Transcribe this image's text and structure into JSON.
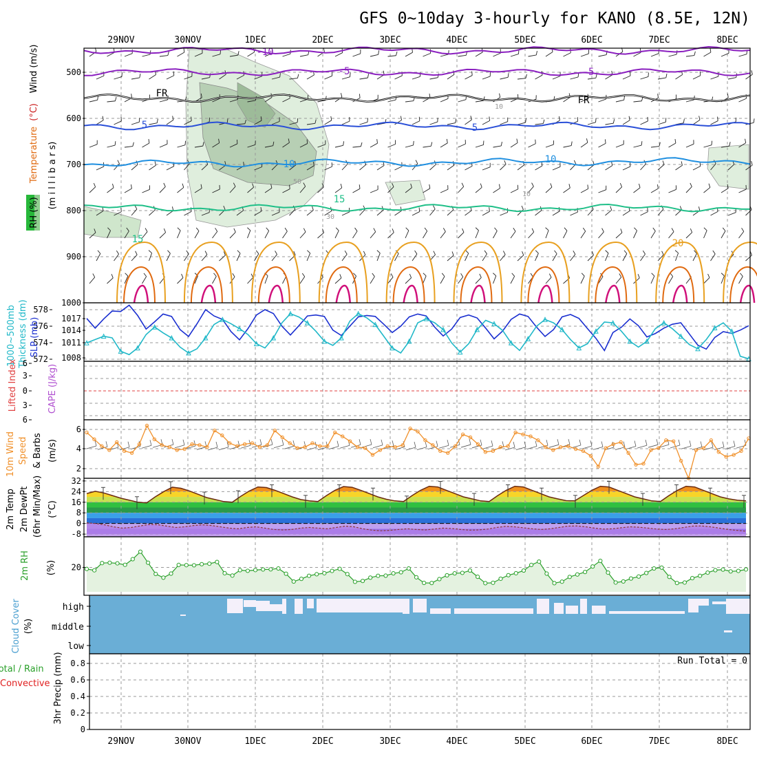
{
  "title": "GFS 0~10day 3-hourly for KANO (8.5E, 12N)",
  "dates": [
    "29NOV",
    "30NOV",
    "1DEC",
    "2DEC",
    "3DEC",
    "4DEC",
    "5DEC",
    "6DEC",
    "7DEC",
    "8DEC"
  ],
  "colors": {
    "purple": "#8a1fbf",
    "black": "#000000",
    "blue": "#2a4fd8",
    "lightblue": "#1f8fe0",
    "teal": "#1fbf88",
    "orange": "#e8a020",
    "darkorange": "#e06a10",
    "magenta": "#d0107a",
    "slp": "#1a2fd0",
    "thick": "#20b8c8",
    "wind10": "#f0902a",
    "dewpt": "#9a40e0",
    "rh": "#2aa02a",
    "cloud": "#6aaed6",
    "cloudwhite": "#f4f0fa",
    "li": "#e04040"
  },
  "panels": {
    "upper": {
      "labels": {
        "rh": "RH (%)",
        "temperature": "Temperature",
        "degc": "(°C)",
        "wind": "Wind (m/s)",
        "axis": "(m i l l i b a r s)"
      },
      "yticks": [
        "500",
        "600",
        "700",
        "800",
        "900",
        "1000"
      ]
    },
    "slp": {
      "labels": {
        "thick1": "1000~500mb",
        "thick2": "Thickness (dm)",
        "slp": "SLP (mb)"
      },
      "left_ticks": [
        "578",
        "576",
        "574",
        "572"
      ],
      "right_ticks": [
        "1017",
        "1014",
        "1011",
        "1008"
      ]
    },
    "cape": {
      "labels": {
        "li": "Lifted Index",
        "cape": "CAPE (J/kg)"
      },
      "yticks": [
        "6",
        "3",
        "0",
        "3",
        "6"
      ]
    },
    "wind10": {
      "labels": {
        "l1": "10m Wind",
        "l2": "Speed",
        "l3": "& Barbs",
        "unit": "(m/s)"
      },
      "yticks": [
        "6",
        "4",
        "2"
      ]
    },
    "temp": {
      "labels": {
        "l1": "2m Temp",
        "l2": "2m DewPt",
        "l3": "(6hr Min/Max)",
        "unit": "(°C)"
      },
      "yticks": [
        "32",
        "24",
        "16",
        "8",
        "0",
        "-8"
      ]
    },
    "rh": {
      "labels": {
        "l1": "2m RH",
        "unit": "(%)"
      },
      "yticks": [
        "20"
      ]
    },
    "cloud": {
      "labels": {
        "l1": "Cloud Cover",
        "unit": "(%)"
      },
      "levels": [
        "high",
        "middle",
        "low"
      ]
    },
    "precip": {
      "labels": {
        "l1": "Total / Rain",
        "l2": "Convective",
        "l3": "3hr Precip (mm)"
      },
      "yticks": [
        "0.8",
        "0.6",
        "0.4",
        "0.2",
        "0"
      ],
      "run_total": "Run Total = 0"
    }
  },
  "chart_data": [
    {
      "type": "line",
      "title": "GFS 0~10day 3-hourly for KANO (8.5E, 12N)",
      "ylabel": "millibars",
      "ylim": [
        450,
        1000
      ],
      "y_reversed": true,
      "contour_labels": [
        "-10",
        "-5",
        "-5",
        "FR",
        "FR",
        "5",
        "5",
        "10",
        "10",
        "15",
        "15",
        "20",
        "10",
        "50",
        "30",
        "10"
      ],
      "series": [
        {
          "name": "-10",
          "level_mb": 455
        },
        {
          "name": "-5",
          "level_mb": 502
        },
        {
          "name": "FR",
          "level_mb": 558
        },
        {
          "name": "5",
          "level_mb": 618
        },
        {
          "name": "10",
          "level_mb": 700
        },
        {
          "name": "15",
          "level_mb": 795
        }
      ]
    },
    {
      "type": "line",
      "ylim_left": [
        572,
        579
      ],
      "ylim_right": [
        1007,
        1019
      ],
      "series": [
        {
          "name": "SLP (mb)",
          "values": [
            1015.8,
            1013.8,
            1015.7,
            1017.3,
            1017.2,
            1018.5,
            1016.4,
            1013.6,
            1015.1,
            1016.7,
            1016.2,
            1013.5,
            1012.1,
            1014.7,
            1017.6,
            1016.3,
            1015.6,
            1013.1,
            1011.4,
            1013.7,
            1016.5,
            1017.6,
            1016.8,
            1014.2,
            1012.4,
            1014.3,
            1016.3,
            1016.5,
            1016.2,
            1013.4,
            1012.3,
            1014.2,
            1016.1,
            1016.4,
            1016.2,
            1014.6,
            1012.9,
            1014.2,
            1016.1,
            1016.7,
            1016.3,
            1014.0,
            1012.2,
            1013.6,
            1016.0,
            1016.5,
            1015.9,
            1013.8,
            1011.6,
            1013.2,
            1015.6,
            1016.7,
            1016.2,
            1014.0,
            1012.1,
            1013.5,
            1016.1,
            1016.6,
            1015.8,
            1013.7,
            1011.7,
            1009.2,
            1012.9,
            1014.0,
            1015.7,
            1014.3,
            1012.0,
            1012.7,
            1013.8,
            1014.6,
            1014.9,
            1012.6,
            1010.3,
            1009.5,
            1011.9,
            1013.1,
            1012.7,
            1013.4,
            1014.3
          ]
        },
        {
          "name": "1000~500mb Thickness (dm)",
          "values": [
            574.2,
            574.6,
            575.0,
            574.8,
            573.2,
            572.8,
            573.6,
            575.2,
            576.1,
            575.4,
            574.8,
            573.7,
            573.0,
            573.5,
            574.8,
            576.4,
            577.0,
            576.5,
            575.9,
            575.2,
            574.1,
            573.6,
            574.8,
            576.6,
            577.7,
            577.3,
            576.6,
            575.6,
            574.4,
            573.9,
            574.8,
            576.8,
            577.7,
            577.2,
            576.4,
            575.0,
            573.6,
            573.0,
            574.4,
            576.6,
            577.1,
            576.6,
            575.8,
            574.2,
            573.1,
            574.1,
            575.8,
            576.9,
            576.5,
            575.7,
            574.2,
            573.3,
            574.7,
            576.2,
            577.0,
            576.6,
            575.8,
            574.6,
            573.6,
            574.1,
            575.6,
            576.7,
            576.6,
            575.6,
            574.4,
            573.7,
            574.4,
            575.9,
            576.6,
            575.9,
            575.0,
            574.0,
            573.5,
            574.6,
            576.0,
            576.6,
            575.6,
            572.6,
            572.3
          ]
        }
      ]
    },
    {
      "type": "line",
      "ylim": [
        -6,
        6
      ],
      "series": [
        {
          "name": "Lifted Index",
          "values": []
        },
        {
          "name": "CAPE (J/kg)",
          "values": []
        }
      ]
    },
    {
      "type": "line",
      "ylabel": "(m/s)",
      "ylim": [
        1,
        7
      ],
      "series": [
        {
          "name": "10m Wind Speed",
          "values": [
            5.7,
            5.0,
            4.3,
            3.9,
            4.7,
            3.8,
            3.6,
            4.5,
            6.4,
            5.0,
            4.4,
            4.2,
            3.9,
            4.0,
            4.5,
            4.4,
            4.2,
            5.9,
            5.4,
            4.6,
            4.3,
            4.5,
            4.6,
            4.2,
            4.4,
            5.9,
            5.2,
            4.6,
            4.1,
            4.2,
            4.6,
            4.3,
            4.3,
            5.7,
            5.3,
            4.8,
            4.2,
            4.1,
            3.4,
            3.9,
            4.3,
            4.2,
            4.4,
            6.1,
            5.8,
            4.9,
            4.4,
            3.8,
            3.6,
            4.3,
            5.5,
            5.2,
            4.5,
            3.7,
            3.8,
            4.2,
            4.3,
            5.7,
            5.5,
            5.3,
            4.9,
            4.2,
            3.9,
            4.2,
            4.3,
            4.0,
            3.8,
            3.3,
            2.2,
            4.1,
            4.5,
            4.7,
            3.6,
            2.4,
            2.5,
            3.9,
            4.1,
            4.9,
            4.8,
            2.8,
            1.0,
            3.9,
            4.1,
            4.9,
            3.7,
            3.2,
            3.4,
            3.8,
            5.1
          ]
        }
      ]
    },
    {
      "type": "area",
      "ylabel": "(°C)",
      "ylim": [
        -10,
        34
      ],
      "series": [
        {
          "name": "2m Temp",
          "values": [
            22.5,
            24.2,
            23.0,
            21.0,
            19.0,
            17.5,
            16.0,
            15.5,
            20.0,
            24.0,
            27.3,
            26.5,
            24.5,
            22.0,
            19.5,
            18.0,
            16.5,
            16.0,
            20.5,
            24.5,
            27.5,
            27.0,
            25.0,
            22.5,
            20.0,
            18.0,
            17.0,
            16.5,
            21.0,
            25.0,
            27.8,
            27.2,
            25.0,
            22.5,
            20.0,
            18.2,
            17.0,
            16.5,
            21.0,
            25.0,
            28.0,
            27.5,
            25.0,
            22.5,
            20.0,
            18.5,
            17.0,
            16.5,
            21.0,
            25.0,
            28.0,
            27.5,
            25.0,
            22.5,
            20.0,
            18.5,
            17.2,
            17.0,
            21.0,
            25.0,
            28.0,
            27.5,
            25.0,
            22.5,
            20.0,
            18.5,
            17.0,
            16.5,
            21.0,
            25.0,
            28.0,
            27.5,
            25.0,
            22.5,
            20.0,
            18.5,
            17.5,
            17.0
          ]
        },
        {
          "name": "2m DewPt",
          "values": [
            0.5,
            0.0,
            -1.0,
            -2.5,
            -3.5,
            -3.0,
            -1.8,
            -0.8,
            -1.0,
            -2.0,
            -3.0,
            -2.5,
            -1.5,
            -1.0,
            -1.5,
            -2.5,
            -3.5,
            -4.0,
            -3.0,
            -2.5,
            -3.5,
            -4.5,
            -4.8,
            -4.5,
            -3.5,
            -3.0,
            -3.5,
            -4.0,
            -3.0,
            -2.0,
            -2.5,
            -4.0,
            -5.0,
            -5.5,
            -5.2,
            -4.5,
            -4.0,
            -4.5,
            -4.8,
            -4.2,
            -3.5,
            -3.8,
            -4.5,
            -5.0,
            -4.8,
            -4.2,
            -3.0,
            -2.2,
            -2.5,
            -3.2,
            -4.0,
            -4.5,
            -4.0,
            -3.0,
            -2.0,
            -1.8,
            -2.5,
            -3.5,
            -4.2,
            -4.0,
            -3.2,
            -2.5,
            -2.8,
            -3.5,
            -4.2,
            -4.5,
            -4.0,
            -3.0,
            -2.0,
            -1.8,
            -2.5,
            -3.5,
            -4.5,
            -5.2,
            -5.8
          ]
        }
      ]
    },
    {
      "type": "area",
      "ylabel": "(%)",
      "ylim": [
        0,
        45
      ],
      "series": [
        {
          "name": "2m RH",
          "values": [
            18.7,
            17.6,
            23.5,
            23.8,
            23.3,
            22.1,
            26.7,
            32.8,
            23.8,
            14.6,
            11.6,
            14.9,
            22.0,
            21.8,
            21.7,
            22.6,
            23.0,
            24.4,
            15.2,
            13.3,
            17.7,
            17.2,
            17.8,
            18.3,
            18.4,
            19.1,
            14.8,
            8.4,
            10.6,
            13.1,
            14.4,
            15.2,
            17.1,
            18.8,
            14.5,
            8.2,
            8.9,
            11.6,
            13.1,
            13.2,
            15.1,
            16.0,
            19.1,
            11.9,
            7.3,
            7.2,
            10.4,
            13.5,
            15.1,
            15.5,
            17.4,
            12.3,
            7.1,
            7.4,
            10.7,
            13.6,
            15.2,
            17.4,
            22.0,
            24.7,
            14.9,
            7.1,
            8.3,
            12.2,
            14.2,
            16.2,
            20.7,
            25.3,
            15.7,
            7.6,
            8.5,
            10.9,
            12.5,
            15.4,
            19.1,
            19.8,
            12.2,
            7.2,
            7.6,
            11.2,
            13.1,
            15.7,
            17.7,
            18.2,
            16.7,
            17.1,
            18.3
          ]
        }
      ]
    },
    {
      "type": "bar",
      "ylabel": "(%)",
      "categories": [
        "high",
        "middle",
        "low"
      ],
      "series": [
        {
          "name": "Cloud Cover",
          "values": [
            100,
            100,
            100
          ]
        }
      ]
    },
    {
      "type": "bar",
      "ylabel": "3hr Precip (mm)",
      "ylim": [
        0,
        0.9
      ],
      "series": [
        {
          "name": "Total / Rain",
          "values": []
        },
        {
          "name": "Convective",
          "values": []
        }
      ]
    }
  ]
}
